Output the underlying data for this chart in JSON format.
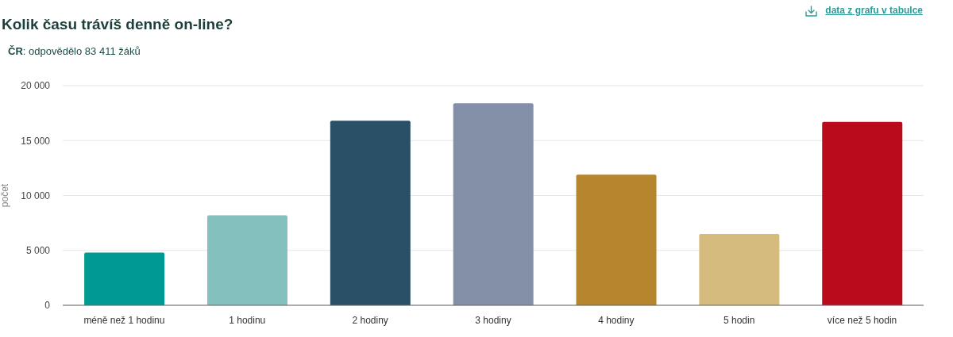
{
  "chart_data": {
    "type": "bar",
    "title": "Kolik času trávíš denně on-line?",
    "subtitle": "ČR: odpovědělo 83 411 žáků",
    "ylabel": "počet",
    "annotations": [
      "data z grafu v tabulce"
    ],
    "categories": [
      "méně než 1 hodinu",
      "1 hodinu",
      "2 hodiny",
      "3 hodiny",
      "4 hodiny",
      "5 hodin",
      "více než 5 hodin"
    ],
    "values": [
      4800,
      8200,
      16800,
      18400,
      11900,
      6500,
      16700
    ],
    "colors": [
      "#009a93",
      "#84c0bd",
      "#2a5068",
      "#8390a8",
      "#b5862e",
      "#d5bc7e",
      "#b90b1c"
    ],
    "ylim": [
      0,
      20000
    ],
    "yticks": [
      0,
      {
        "value": 5000,
        "label": "5 000"
      },
      {
        "value": 10000,
        "label": "10 000"
      },
      {
        "value": 15000,
        "label": "15 000"
      },
      {
        "value": 20000,
        "label": "20 000"
      }
    ],
    "grid": "y"
  }
}
